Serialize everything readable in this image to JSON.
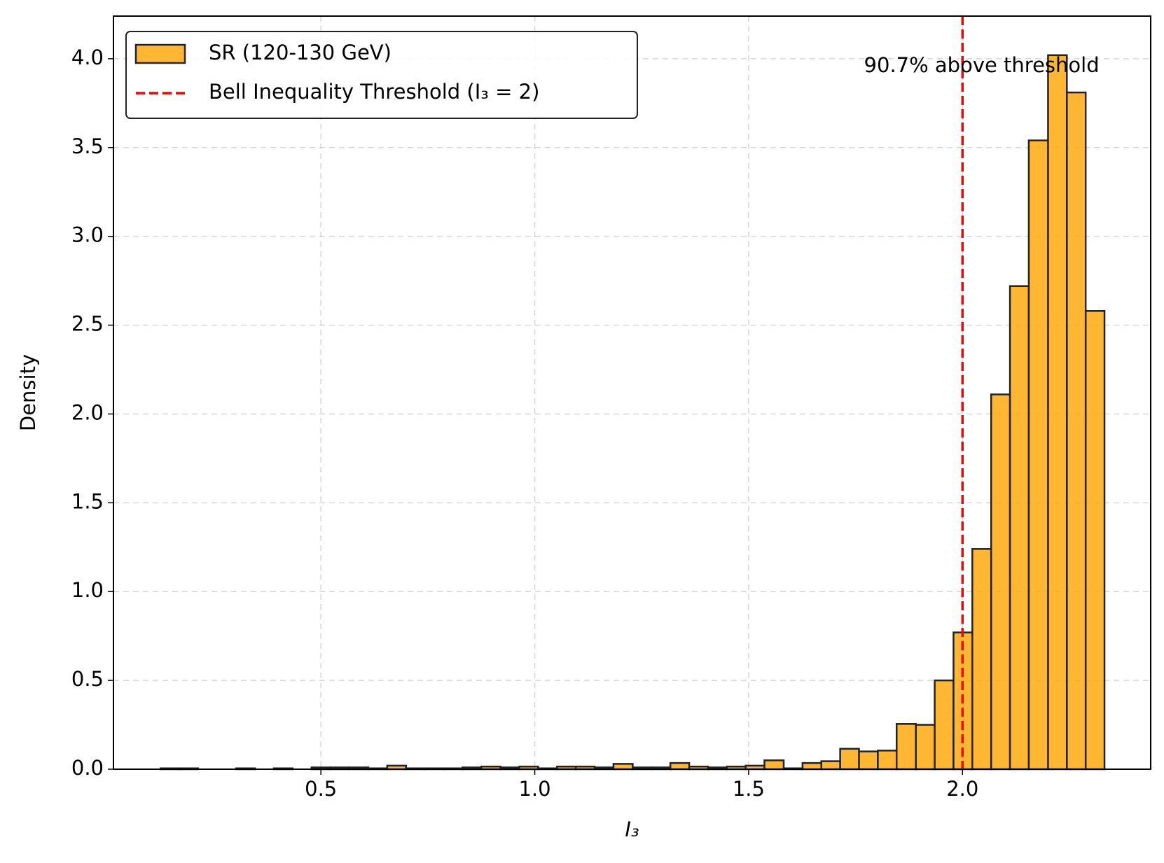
{
  "chart_data": {
    "type": "histogram",
    "xlabel": "I₃",
    "ylabel": "Density",
    "bins": [
      0.125,
      0.169,
      0.213,
      0.257,
      0.302,
      0.346,
      0.39,
      0.434,
      0.478,
      0.522,
      0.566,
      0.611,
      0.655,
      0.699,
      0.743,
      0.787,
      0.831,
      0.875,
      0.92,
      0.964,
      1.008,
      1.052,
      1.096,
      1.14,
      1.184,
      1.229,
      1.273,
      1.317,
      1.361,
      1.405,
      1.449,
      1.493,
      1.537,
      1.582,
      1.626,
      1.67,
      1.714,
      1.758,
      1.802,
      1.846,
      1.891,
      1.935,
      1.979,
      2.023,
      2.067,
      2.111,
      2.155,
      2.2,
      2.244,
      2.288,
      2.332
    ],
    "series": [
      {
        "name": "SR (120-130 GeV)",
        "color": "#ffa500",
        "edgecolor": "#222222",
        "values": [
          0.005,
          0.005,
          0.0,
          0.0,
          0.005,
          0.0,
          0.005,
          0.0,
          0.01,
          0.01,
          0.01,
          0.005,
          0.02,
          0.005,
          0.005,
          0.005,
          0.01,
          0.015,
          0.01,
          0.015,
          0.005,
          0.015,
          0.015,
          0.01,
          0.03,
          0.01,
          0.01,
          0.035,
          0.015,
          0.01,
          0.015,
          0.02,
          0.05,
          0.005,
          0.035,
          0.045,
          0.115,
          0.1,
          0.105,
          0.255,
          0.25,
          0.5,
          0.77,
          1.24,
          2.11,
          2.72,
          3.54,
          4.02,
          3.81,
          2.58
        ]
      }
    ],
    "vlines": [
      {
        "name": "Bell Inequality Threshold (I₃ = 2)",
        "x": 2,
        "color": "#ff0000"
      }
    ],
    "annotation": "90.7% above threshold",
    "xlim": [
      0.015,
      2.44
    ],
    "ylim": [
      0,
      4.24
    ],
    "xticks": [
      0.5,
      {
        "value": 1,
        "label": "1.0"
      },
      1.5,
      {
        "value": 2,
        "label": "2.0"
      }
    ],
    "yticks": [
      {
        "value": 0,
        "label": "0.0"
      },
      0.5,
      {
        "value": 1,
        "label": "1.0"
      },
      1.5,
      {
        "value": 2,
        "label": "2.0"
      },
      2.5,
      {
        "value": 3,
        "label": "3.0"
      },
      3.5,
      {
        "value": 4,
        "label": "4.0"
      }
    ],
    "grid": true,
    "legend": "upper left"
  }
}
